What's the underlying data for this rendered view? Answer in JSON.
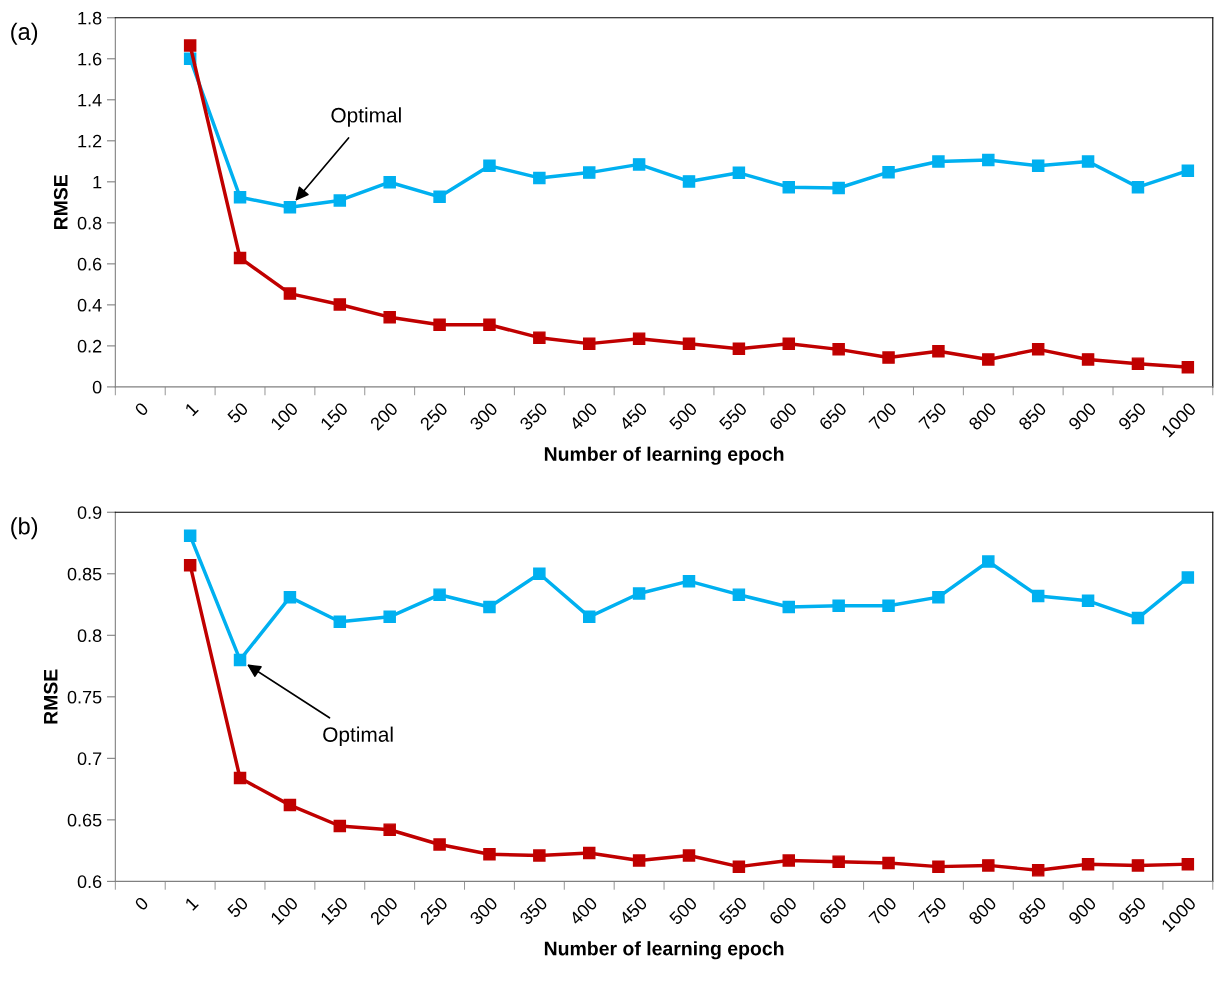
{
  "chart_data": [
    {
      "type": "line",
      "title": "(a)",
      "xlabel": "Number of learning epoch",
      "ylabel": "RMSE",
      "categories": [
        "0",
        "1",
        "50",
        "100",
        "150",
        "200",
        "250",
        "300",
        "350",
        "400",
        "450",
        "500",
        "550",
        "600",
        "650",
        "700",
        "750",
        "800",
        "850",
        "900",
        "950",
        "1000"
      ],
      "series": [
        {
          "color": "#00b0f0",
          "values": [
            null,
            1.6,
            0.925,
            0.876,
            0.909,
            0.998,
            0.927,
            1.078,
            1.019,
            1.045,
            1.085,
            1.002,
            1.044,
            0.974,
            0.97,
            1.047,
            1.099,
            1.106,
            1.078,
            1.099,
            0.974,
            1.054
          ]
        },
        {
          "color": "#c00000",
          "values": [
            null,
            1.665,
            0.629,
            0.455,
            0.402,
            0.34,
            0.303,
            0.303,
            0.24,
            0.211,
            0.235,
            0.21,
            0.186,
            0.21,
            0.183,
            0.143,
            0.174,
            0.134,
            0.183,
            0.134,
            0.113,
            0.096
          ]
        }
      ],
      "ylim": [
        0,
        1.8
      ],
      "yticks": [
        0,
        0.2,
        0.4,
        0.6,
        0.8,
        1,
        1.2,
        1.4,
        1.6,
        1.8
      ],
      "marker": "square",
      "grid": false,
      "legend": false,
      "annotations": [
        {
          "text": "Optimal",
          "x": "100",
          "y": 0.876
        }
      ]
    },
    {
      "type": "line",
      "title": "(b)",
      "xlabel": "Number of learning epoch",
      "ylabel": "RMSE",
      "categories": [
        "0",
        "1",
        "50",
        "100",
        "150",
        "200",
        "250",
        "300",
        "350",
        "400",
        "450",
        "500",
        "550",
        "600",
        "650",
        "700",
        "750",
        "800",
        "850",
        "900",
        "950",
        "1000"
      ],
      "series": [
        {
          "color": "#00b0f0",
          "values": [
            null,
            0.881,
            0.78,
            0.831,
            0.811,
            0.815,
            0.833,
            0.823,
            0.85,
            0.815,
            0.834,
            0.844,
            0.833,
            0.823,
            0.824,
            0.824,
            0.831,
            0.86,
            0.832,
            0.828,
            0.814,
            0.847
          ]
        },
        {
          "color": "#c00000",
          "values": [
            null,
            0.857,
            0.684,
            0.662,
            0.645,
            0.642,
            0.63,
            0.622,
            0.621,
            0.623,
            0.617,
            0.621,
            0.612,
            0.617,
            0.616,
            0.615,
            0.612,
            0.613,
            0.609,
            0.614,
            0.613,
            0.614
          ]
        }
      ],
      "ylim": [
        0.6,
        0.9
      ],
      "yticks": [
        0.6,
        0.65,
        0.7,
        0.75,
        0.8,
        0.85,
        0.9
      ],
      "marker": "square",
      "grid": false,
      "legend": false,
      "annotations": [
        {
          "text": "Optimal",
          "x": "50",
          "y": 0.78
        }
      ]
    }
  ]
}
